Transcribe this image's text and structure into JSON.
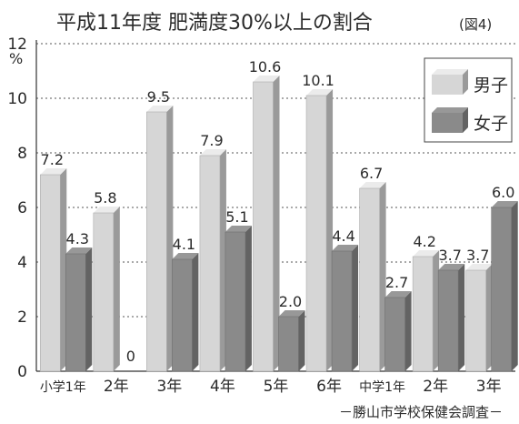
{
  "chart_data": {
    "type": "bar",
    "title": "平成11年度 肥満度30%以上の割合",
    "figure_label": "(図4)",
    "y_unit": "%",
    "ylim": [
      0,
      12
    ],
    "y_ticks": [
      "0",
      "2",
      "4",
      "6",
      "8",
      "10",
      "12"
    ],
    "grid": true,
    "legend_position": "top-right",
    "categories": [
      "小学1年",
      "2年",
      "3年",
      "4年",
      "5年",
      "6年",
      "中学1年",
      "2年",
      "3年"
    ],
    "series": [
      {
        "name": "男子",
        "color": "#d6d6d6",
        "values": [
          7.2,
          5.8,
          9.5,
          7.9,
          10.6,
          10.1,
          6.7,
          4.2,
          3.7
        ],
        "labels": [
          "7.2",
          "5.8",
          "9.5",
          "7.9",
          "10.6",
          "10.1",
          "6.7",
          "4.2",
          "3.7"
        ]
      },
      {
        "name": "女子",
        "color": "#8a8a8a",
        "values": [
          4.3,
          0,
          4.1,
          5.1,
          2.0,
          4.4,
          2.7,
          3.7,
          6.0
        ],
        "labels": [
          "4.3",
          "0",
          "4.1",
          "5.1",
          "2.0",
          "4.4",
          "2.7",
          "3.7",
          "6.0"
        ]
      }
    ],
    "source": "－勝山市学校保健会調査－"
  }
}
